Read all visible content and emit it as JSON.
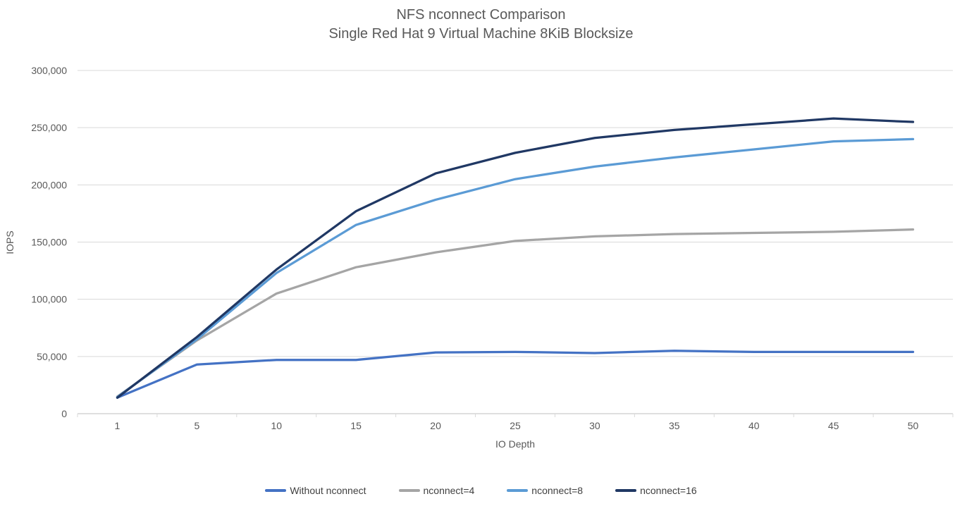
{
  "chart": {
    "title_line1": "NFS nconnect Comparison",
    "title_line2": "Single Red Hat 9 Virtual Machine 8KiB Blocksize",
    "y_axis_title": "IOPS",
    "x_axis_title": "IO Depth"
  },
  "style": {
    "background": "#ffffff",
    "title_color": "#595959",
    "axis_text_color": "#595959",
    "legend_text_color": "#404040",
    "gridline_color": "#D9D9D9",
    "axis_line_color": "#BFBFBF",
    "tick_color": "#D9D9D9"
  },
  "chart_data": {
    "type": "line",
    "title": "NFS nconnect Comparison",
    "subtitle": "Single Red Hat 9 Virtual Machine 8KiB Blocksize",
    "xlabel": "IO Depth",
    "ylabel": "IOPS",
    "categories": [
      1,
      5,
      10,
      15,
      20,
      25,
      30,
      35,
      40,
      45,
      50
    ],
    "series": [
      {
        "name": "Without nconnect",
        "color": "#4472C4",
        "values": [
          14000,
          43000,
          47000,
          47000,
          53500,
          54000,
          53000,
          55000,
          54000,
          54000,
          54000
        ]
      },
      {
        "name": "nconnect=4",
        "color": "#A5A5A5",
        "values": [
          15000,
          64000,
          105000,
          128000,
          141000,
          151000,
          155000,
          157000,
          158000,
          159000,
          161000
        ]
      },
      {
        "name": "nconnect=8",
        "color": "#5B9BD5",
        "values": [
          14500,
          65000,
          123000,
          165000,
          187000,
          205000,
          216000,
          224000,
          231000,
          238000,
          240000
        ]
      },
      {
        "name": "nconnect=16",
        "color": "#203864",
        "values": [
          14000,
          67000,
          126000,
          177000,
          210000,
          228000,
          241000,
          248000,
          253000,
          258000,
          255000
        ]
      }
    ],
    "ylim": [
      0,
      300000
    ],
    "y_tick_step": 50000,
    "y_tick_labels": [
      "0",
      "50,000",
      "100,000",
      "150,000",
      "200,000",
      "250,000",
      "300,000"
    ],
    "grid": true,
    "legend_position": "bottom"
  }
}
